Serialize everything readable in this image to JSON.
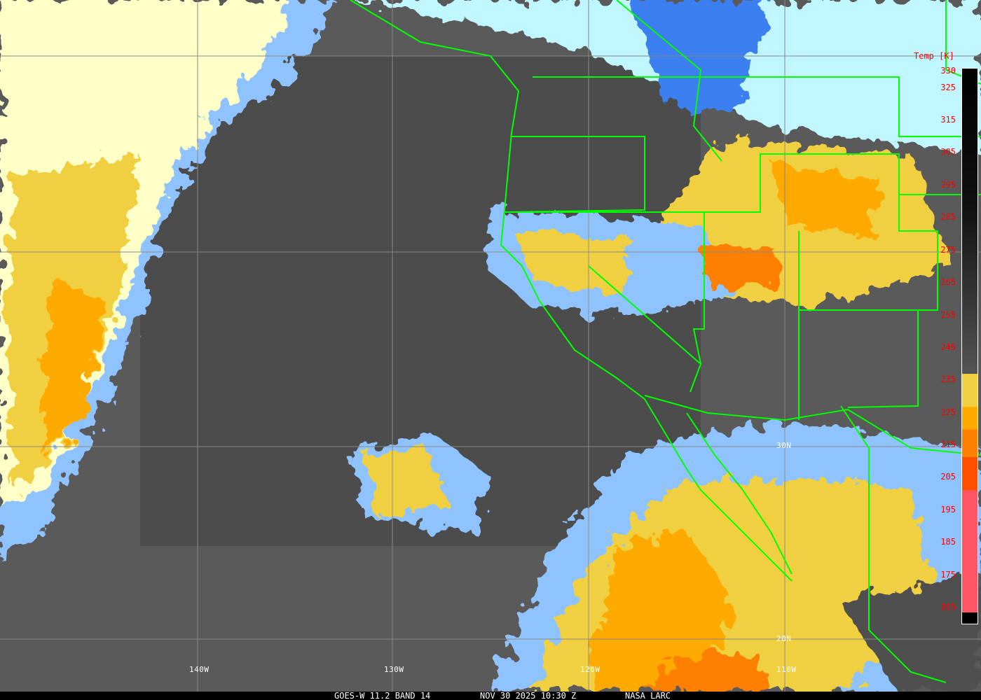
{
  "footer": {
    "satellite": "GOES-W 11.2 BAND 14",
    "datetime": "NOV 30 2025 10:30 Z",
    "credit": "NASA LARC"
  },
  "colorbar": {
    "title": "Temp [K]",
    "labels": [
      "330",
      "325",
      "315",
      "305",
      "295",
      "285",
      "275",
      "265",
      "255",
      "245",
      "235",
      "225",
      "215",
      "205",
      "195",
      "185",
      "175",
      "165"
    ],
    "label_color": "#ff0000"
  },
  "grid_labels": {
    "lon": [
      "140W",
      "130W",
      "120W",
      "110W"
    ],
    "lat": [
      "30N",
      "20N"
    ]
  },
  "colors": {
    "boundaries": "#00ff00",
    "grid": "#888888",
    "cold_cloud": "#ffaa00",
    "clear_ocean": "#555555"
  }
}
